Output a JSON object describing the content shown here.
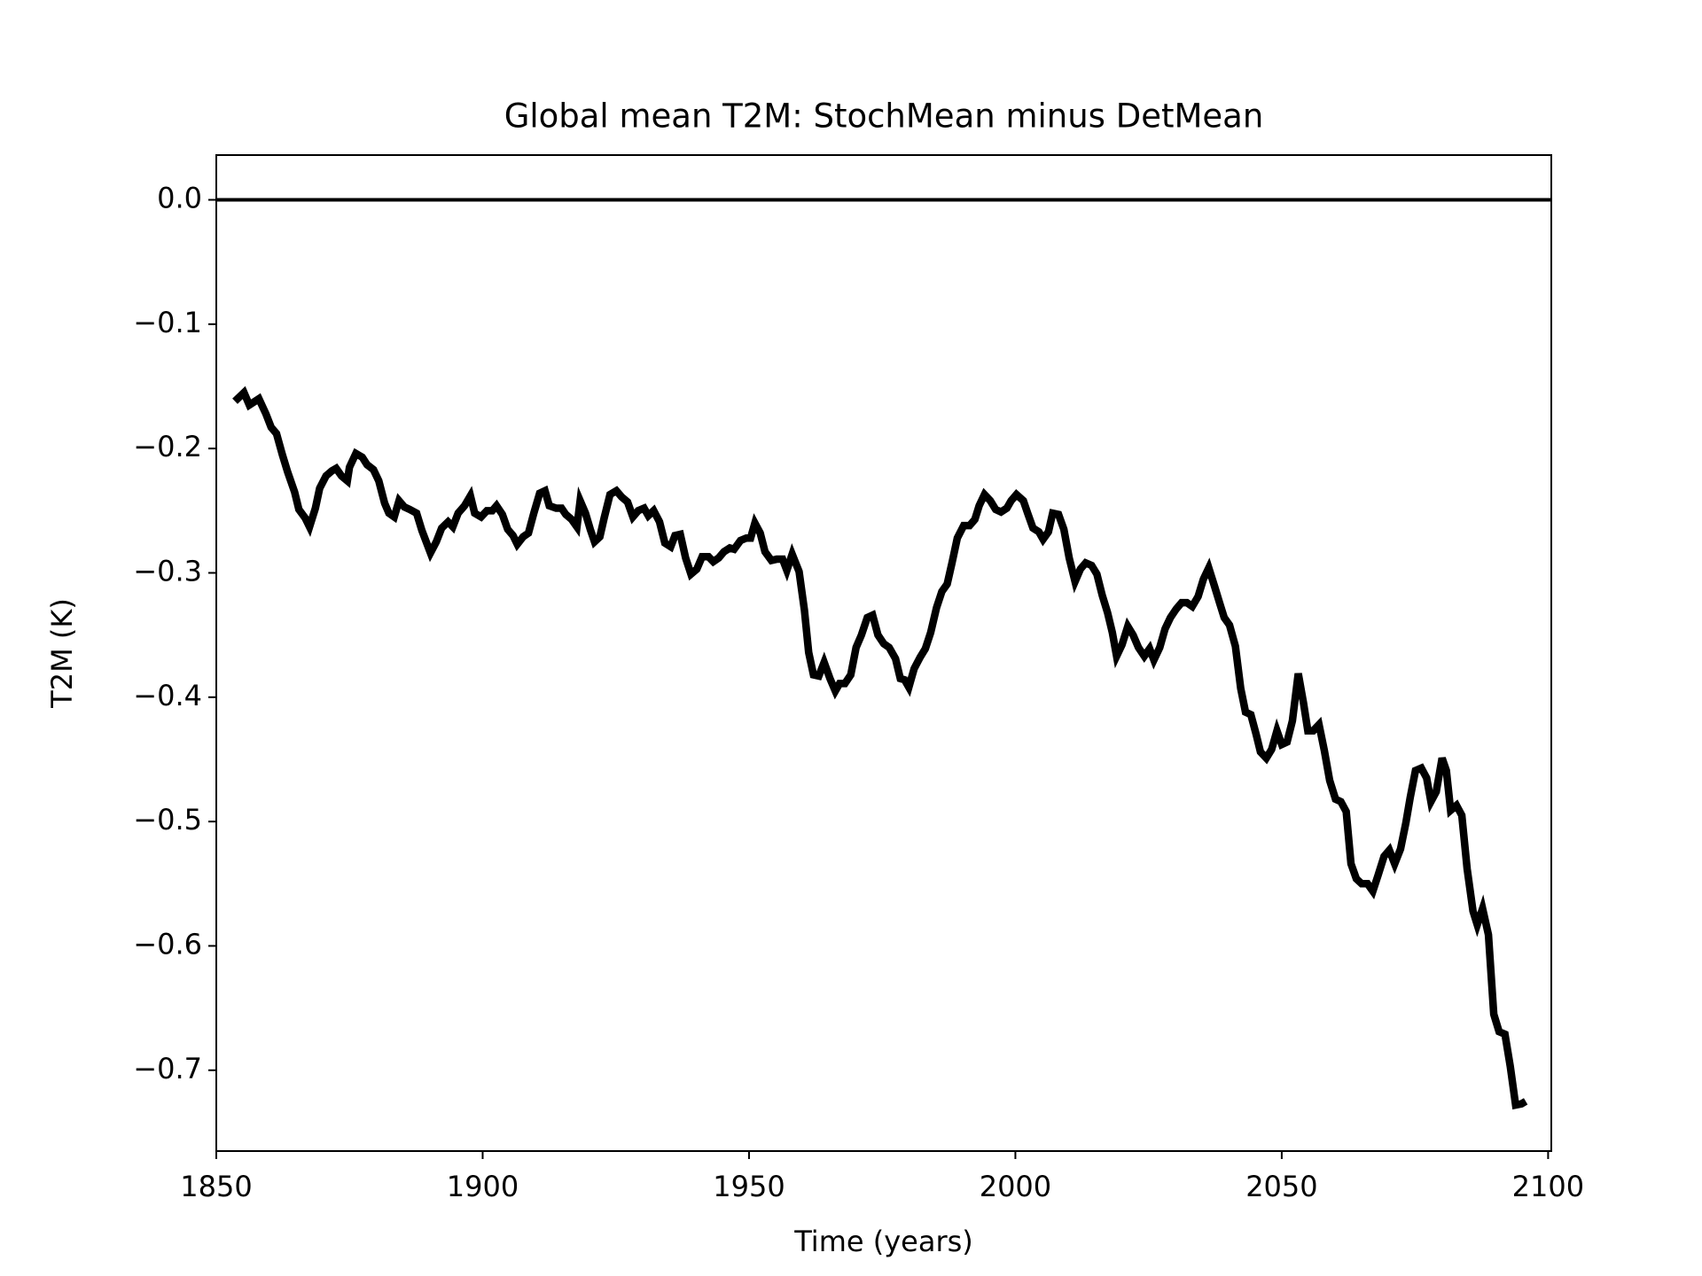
{
  "chart_data": {
    "type": "line",
    "title": "Global mean T2M: StochMean minus DetMean",
    "xlabel": "Time (years)",
    "ylabel": "T2M (K)",
    "xlim": [
      1850,
      2100.6
    ],
    "ylim": [
      -0.765,
      0.036
    ],
    "xticks": [
      1850,
      1900,
      1950,
      2000,
      2050,
      2100
    ],
    "yticks": [
      {
        "value": 0,
        "label": "0.0"
      },
      {
        "value": -0.1,
        "label": "−0.1"
      },
      {
        "value": -0.2,
        "label": "−0.2"
      },
      {
        "value": -0.3,
        "label": "−0.3"
      },
      {
        "value": -0.4,
        "label": "−0.4"
      },
      {
        "value": -0.5,
        "label": "−0.5"
      },
      {
        "value": -0.6,
        "label": "−0.6"
      },
      {
        "value": -0.7,
        "label": "−0.7"
      }
    ],
    "hline": 0,
    "grid": false,
    "x": [
      1853.5,
      1855.2,
      1856.2,
      1858.0,
      1859.3,
      1860.3,
      1861.3,
      1862.4,
      1863.4,
      1864.7,
      1865.5,
      1866.7,
      1867.5,
      1868.6,
      1869.4,
      1870.6,
      1871.7,
      1872.5,
      1873.5,
      1874.6,
      1875.0,
      1876.2,
      1877.4,
      1878.3,
      1879.5,
      1880.5,
      1881.6,
      1882.4,
      1883.4,
      1884.3,
      1885.3,
      1886.3,
      1887.6,
      1888.6,
      1890.2,
      1891.3,
      1892.3,
      1893.5,
      1894.4,
      1895.4,
      1896.6,
      1897.7,
      1898.5,
      1899.7,
      1900.8,
      1901.8,
      1902.6,
      1903.7,
      1904.7,
      1905.7,
      1906.5,
      1907.6,
      1908.6,
      1909.6,
      1910.7,
      1911.7,
      1912.5,
      1913.8,
      1914.8,
      1915.6,
      1916.7,
      1917.7,
      1918.3,
      1919.3,
      1920.2,
      1921.0,
      1922.0,
      1922.8,
      1923.9,
      1925.1,
      1926.1,
      1927.2,
      1928.2,
      1929.2,
      1930.3,
      1931.1,
      1932.1,
      1933.2,
      1934.2,
      1935.3,
      1936.1,
      1937.1,
      1938.1,
      1939.1,
      1940.2,
      1941.2,
      1942.4,
      1943.3,
      1944.3,
      1945.3,
      1946.4,
      1947.2,
      1948.4,
      1949.5,
      1950.3,
      1951.1,
      1952.1,
      1953.0,
      1954.2,
      1955.2,
      1956.3,
      1957.1,
      1958.1,
      1959.4,
      1960.4,
      1961.2,
      1962.1,
      1963.1,
      1964.1,
      1965.2,
      1966.2,
      1967.0,
      1968.0,
      1969.1,
      1970.1,
      1971.1,
      1972.2,
      1973.2,
      1974.2,
      1975.3,
      1976.3,
      1977.5,
      1978.4,
      1979.2,
      1980.0,
      1981.0,
      1982.1,
      1983.1,
      1984.1,
      1985.2,
      1986.2,
      1987.2,
      1988.1,
      1989.1,
      1990.3,
      1991.4,
      1992.4,
      1993.2,
      1994.2,
      1995.3,
      1996.3,
      1997.3,
      1998.4,
      1999.2,
      2000.2,
      2001.5,
      2002.3,
      2003.3,
      2004.4,
      2005.2,
      2006.2,
      2007.0,
      2008.1,
      2009.1,
      2010.1,
      2011.2,
      2012.2,
      2013.2,
      2014.3,
      2015.3,
      2016.3,
      2017.3,
      2018.2,
      2019.0,
      2020.0,
      2021.1,
      2022.1,
      2023.1,
      2024.2,
      2025.2,
      2026.0,
      2027.1,
      2028.1,
      2029.1,
      2030.2,
      2031.2,
      2032.2,
      2033.2,
      2034.3,
      2035.3,
      2036.3,
      2037.4,
      2038.4,
      2039.2,
      2040.2,
      2041.3,
      2042.3,
      2043.2,
      2044.2,
      2045.2,
      2046.0,
      2047.1,
      2048.1,
      2049.1,
      2050.0,
      2051.0,
      2052.0,
      2053.1,
      2054.1,
      2054.9,
      2055.9,
      2057.0,
      2058.0,
      2059.0,
      2060.1,
      2061.1,
      2062.1,
      2063.0,
      2064.0,
      2065.0,
      2066.1,
      2067.1,
      2068.1,
      2069.2,
      2070.2,
      2071.2,
      2072.3,
      2073.3,
      2074.1,
      2075.1,
      2076.2,
      2077.2,
      2078.0,
      2079.0,
      2080.1,
      2080.9,
      2081.7,
      2082.8,
      2083.8,
      2084.8,
      2085.9,
      2086.7,
      2087.7,
      2088.8,
      2089.8,
      2090.8,
      2091.9,
      2092.9,
      2093.9,
      2095.0,
      2095.8
    ],
    "series": [
      {
        "color": "#000000",
        "values": [
          -0.162,
          -0.155,
          -0.165,
          -0.16,
          -0.172,
          -0.183,
          -0.188,
          -0.205,
          -0.219,
          -0.235,
          -0.249,
          -0.256,
          -0.263,
          -0.248,
          -0.232,
          -0.222,
          -0.218,
          -0.216,
          -0.222,
          -0.226,
          -0.215,
          -0.204,
          -0.207,
          -0.213,
          -0.217,
          -0.226,
          -0.244,
          -0.252,
          -0.255,
          -0.242,
          -0.247,
          -0.249,
          -0.252,
          -0.266,
          -0.284,
          -0.275,
          -0.264,
          -0.259,
          -0.263,
          -0.252,
          -0.246,
          -0.238,
          -0.252,
          -0.255,
          -0.25,
          -0.25,
          -0.246,
          -0.253,
          -0.265,
          -0.27,
          -0.277,
          -0.271,
          -0.268,
          -0.252,
          -0.236,
          -0.234,
          -0.246,
          -0.248,
          -0.248,
          -0.253,
          -0.257,
          -0.263,
          -0.242,
          -0.252,
          -0.265,
          -0.275,
          -0.271,
          -0.256,
          -0.237,
          -0.234,
          -0.239,
          -0.243,
          -0.255,
          -0.25,
          -0.248,
          -0.254,
          -0.25,
          -0.259,
          -0.276,
          -0.279,
          -0.27,
          -0.269,
          -0.288,
          -0.301,
          -0.297,
          -0.287,
          -0.287,
          -0.291,
          -0.288,
          -0.283,
          -0.28,
          -0.281,
          -0.274,
          -0.272,
          -0.272,
          -0.26,
          -0.268,
          -0.283,
          -0.29,
          -0.289,
          -0.289,
          -0.298,
          -0.285,
          -0.299,
          -0.33,
          -0.364,
          -0.382,
          -0.383,
          -0.372,
          -0.385,
          -0.395,
          -0.389,
          -0.389,
          -0.382,
          -0.36,
          -0.35,
          -0.336,
          -0.334,
          -0.35,
          -0.357,
          -0.36,
          -0.369,
          -0.385,
          -0.386,
          -0.392,
          -0.377,
          -0.368,
          -0.361,
          -0.348,
          -0.328,
          -0.315,
          -0.309,
          -0.292,
          -0.272,
          -0.262,
          -0.262,
          -0.257,
          -0.246,
          -0.237,
          -0.242,
          -0.249,
          -0.251,
          -0.248,
          -0.242,
          -0.237,
          -0.242,
          -0.252,
          -0.264,
          -0.267,
          -0.273,
          -0.267,
          -0.252,
          -0.253,
          -0.265,
          -0.288,
          -0.307,
          -0.297,
          -0.292,
          -0.294,
          -0.301,
          -0.318,
          -0.332,
          -0.348,
          -0.367,
          -0.358,
          -0.343,
          -0.35,
          -0.36,
          -0.367,
          -0.361,
          -0.37,
          -0.36,
          -0.345,
          -0.336,
          -0.329,
          -0.324,
          -0.324,
          -0.327,
          -0.319,
          -0.305,
          -0.296,
          -0.311,
          -0.325,
          -0.336,
          -0.342,
          -0.359,
          -0.393,
          -0.412,
          -0.414,
          -0.43,
          -0.444,
          -0.449,
          -0.442,
          -0.427,
          -0.438,
          -0.436,
          -0.419,
          -0.381,
          -0.405,
          -0.427,
          -0.427,
          -0.422,
          -0.443,
          -0.467,
          -0.482,
          -0.484,
          -0.492,
          -0.534,
          -0.546,
          -0.55,
          -0.55,
          -0.556,
          -0.543,
          -0.528,
          -0.523,
          -0.534,
          -0.522,
          -0.501,
          -0.481,
          -0.459,
          -0.457,
          -0.465,
          -0.484,
          -0.476,
          -0.449,
          -0.459,
          -0.491,
          -0.487,
          -0.495,
          -0.538,
          -0.572,
          -0.583,
          -0.57,
          -0.591,
          -0.655,
          -0.669,
          -0.671,
          -0.697,
          -0.728,
          -0.727,
          -0.725
        ]
      }
    ]
  }
}
